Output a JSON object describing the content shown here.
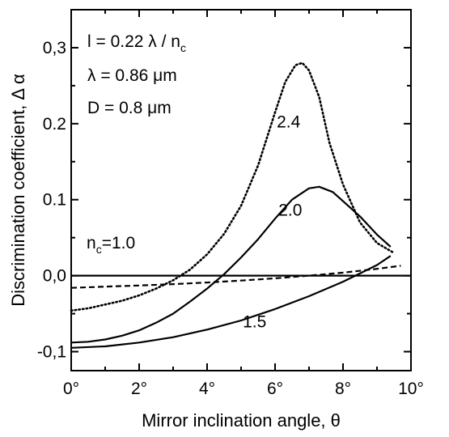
{
  "chart_data": {
    "type": "line",
    "xlabel": "Mirror inclination angle,  θ",
    "ylabel": "Discrimination coefficient, Δ α",
    "xlim": [
      0,
      10
    ],
    "ylim": [
      -0.125,
      0.35
    ],
    "x_ticks": [
      {
        "value": 0,
        "label": "0°"
      },
      {
        "value": 2,
        "label": "2°"
      },
      {
        "value": 4,
        "label": "4°"
      },
      {
        "value": 6,
        "label": "6°"
      },
      {
        "value": 8,
        "label": "8°"
      },
      {
        "value": 10,
        "label": "10°"
      }
    ],
    "y_ticks": [
      {
        "value": -0.1,
        "label": "-0,1"
      },
      {
        "value": 0.0,
        "label": "0,0"
      },
      {
        "value": 0.1,
        "label": "0.1"
      },
      {
        "value": 0.2,
        "label": "0.2"
      },
      {
        "value": 0.3,
        "label": "0,3"
      }
    ],
    "params": [
      "l = 0.22 λ / n",
      "λ = 0.86 μm",
      "D = 0.8 μm"
    ],
    "param_subscript": "c",
    "series": [
      {
        "label": "1.0",
        "style": "solid",
        "label_prefix": "n",
        "label_sub": "c",
        "label_suffix": "=1.0",
        "x": [
          0,
          10
        ],
        "y": [
          0.0,
          0.0
        ]
      },
      {
        "label": "1.0 (dashed)",
        "style": "dashed",
        "x": [
          0,
          1,
          2,
          3,
          4,
          5,
          6,
          7,
          8,
          9,
          9.7
        ],
        "y": [
          -0.016,
          -0.0145,
          -0.013,
          -0.0112,
          -0.009,
          -0.0065,
          -0.0035,
          0.0,
          0.004,
          0.009,
          0.013
        ]
      },
      {
        "label": "1.5",
        "style": "solid",
        "x": [
          0,
          1,
          2,
          3,
          4,
          5,
          6,
          7,
          8,
          9,
          9.4
        ],
        "y": [
          -0.095,
          -0.093,
          -0.088,
          -0.081,
          -0.071,
          -0.059,
          -0.044,
          -0.027,
          -0.008,
          0.014,
          0.026
        ]
      },
      {
        "label": "2.0",
        "style": "solid",
        "x": [
          0,
          0.5,
          1,
          1.5,
          2,
          2.5,
          3,
          3.5,
          4,
          4.5,
          5,
          5.5,
          6,
          6.5,
          7,
          7.3,
          7.7,
          8,
          8.5,
          9,
          9.4
        ],
        "y": [
          -0.088,
          -0.087,
          -0.084,
          -0.079,
          -0.072,
          -0.062,
          -0.05,
          -0.034,
          -0.017,
          0.002,
          0.024,
          0.048,
          0.075,
          0.1,
          0.115,
          0.117,
          0.11,
          0.098,
          0.078,
          0.054,
          0.038
        ]
      },
      {
        "label": "2.4",
        "style": "dotted",
        "x": [
          0,
          0.5,
          1,
          1.5,
          2,
          2.5,
          3,
          3.5,
          4,
          4.5,
          5,
          5.5,
          6,
          6.3,
          6.6,
          6.8,
          7,
          7.3,
          7.6,
          8,
          8.5,
          9,
          9.5
        ],
        "y": [
          -0.046,
          -0.043,
          -0.038,
          -0.033,
          -0.026,
          -0.017,
          -0.006,
          0.008,
          0.028,
          0.055,
          0.092,
          0.145,
          0.215,
          0.255,
          0.277,
          0.28,
          0.27,
          0.235,
          0.175,
          0.12,
          0.07,
          0.043,
          0.03
        ]
      }
    ],
    "curve_labels": [
      {
        "text": "2.4",
        "x": 6.05,
        "y": 0.195
      },
      {
        "text": "2.0",
        "x": 6.1,
        "y": 0.079
      },
      {
        "text": "1.5",
        "x": 5.05,
        "y": -0.068
      }
    ],
    "grid": false,
    "legend": "none"
  }
}
